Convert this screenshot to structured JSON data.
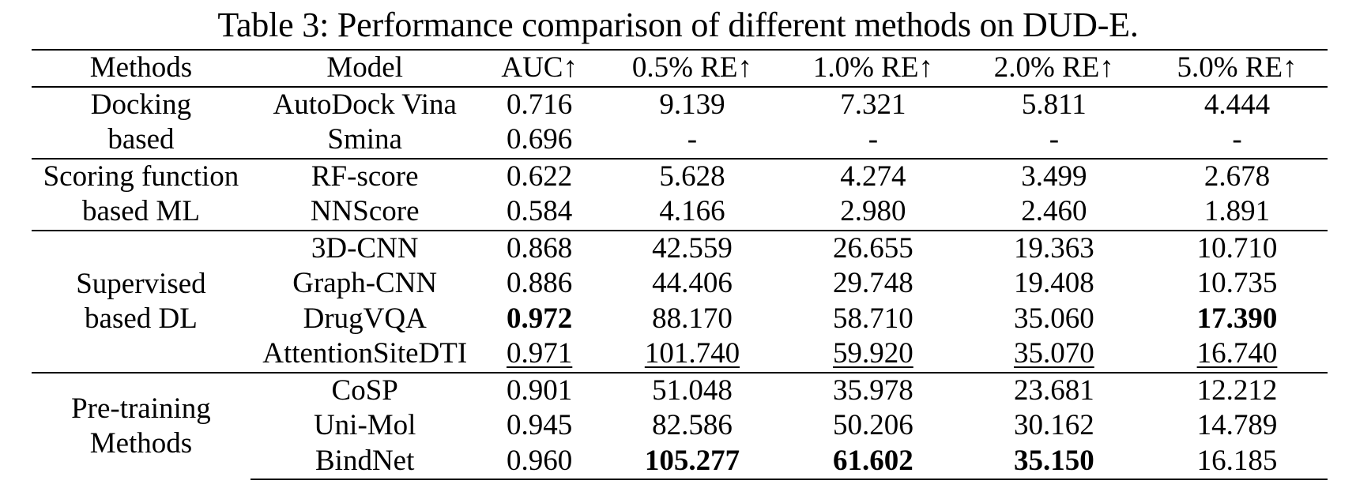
{
  "caption": "Table 3: Performance comparison of different methods on DUD-E.",
  "headers": [
    "Methods",
    "Model",
    "AUC↑",
    "0.5% RE↑",
    "1.0% RE↑",
    "2.0% RE↑",
    "5.0% RE↑"
  ],
  "groups": [
    {
      "method_line1": "Docking",
      "method_line2": "based",
      "rows": [
        {
          "model": "AutoDock Vina",
          "values": [
            "0.716",
            "9.139",
            "7.321",
            "5.811",
            "4.444"
          ],
          "bold": [],
          "underline": []
        },
        {
          "model": "Smina",
          "values": [
            "0.696",
            "-",
            "-",
            "-",
            "-"
          ],
          "bold": [],
          "underline": []
        }
      ]
    },
    {
      "method_line1": "Scoring function",
      "method_line2": "based ML",
      "rows": [
        {
          "model": "RF-score",
          "values": [
            "0.622",
            "5.628",
            "4.274",
            "3.499",
            "2.678"
          ],
          "bold": [],
          "underline": []
        },
        {
          "model": "NNScore",
          "values": [
            "0.584",
            "4.166",
            "2.980",
            "2.460",
            "1.891"
          ],
          "bold": [],
          "underline": []
        }
      ]
    },
    {
      "method_line1": "Supervised",
      "method_line2": "based DL",
      "rows": [
        {
          "model": "3D-CNN",
          "values": [
            "0.868",
            "42.559",
            "26.655",
            "19.363",
            "10.710"
          ],
          "bold": [],
          "underline": []
        },
        {
          "model": "Graph-CNN",
          "values": [
            "0.886",
            "44.406",
            "29.748",
            "19.408",
            "10.735"
          ],
          "bold": [],
          "underline": []
        },
        {
          "model": "DrugVQA",
          "values": [
            "0.972",
            "88.170",
            "58.710",
            "35.060",
            "17.390"
          ],
          "bold": [
            0,
            4
          ],
          "underline": []
        },
        {
          "model": "AttentionSiteDTI",
          "values": [
            "0.971",
            "101.740",
            "59.920",
            "35.070",
            "16.740"
          ],
          "bold": [],
          "underline": [
            0,
            1,
            2,
            3,
            4
          ]
        }
      ]
    },
    {
      "method_line1": "Pre-training",
      "method_line2": "Methods",
      "rows": [
        {
          "model": "CoSP",
          "values": [
            "0.901",
            "51.048",
            "35.978",
            "23.681",
            "12.212"
          ],
          "bold": [],
          "underline": []
        },
        {
          "model": "Uni-Mol",
          "values": [
            "0.945",
            "82.586",
            "50.206",
            "30.162",
            "14.789"
          ],
          "bold": [],
          "underline": []
        },
        {
          "model": "BindNet",
          "values": [
            "0.960",
            "105.277",
            "61.602",
            "35.150",
            "16.185"
          ],
          "bold": [
            1,
            2,
            3
          ],
          "underline": []
        }
      ]
    }
  ]
}
